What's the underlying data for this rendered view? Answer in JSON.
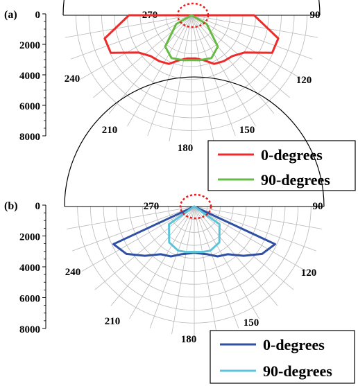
{
  "chart_data": [
    {
      "panel_label": "(a)",
      "type": "polar",
      "radial_axis": {
        "ticks": [
          0,
          2000,
          4000,
          6000,
          8000
        ],
        "range": [
          0,
          8000
        ]
      },
      "angle_ticks": [
        "270",
        "240",
        "210",
        "180",
        "150",
        "120",
        "90"
      ],
      "legend": {
        "placement": "bottom-right",
        "entries": [
          "0-degrees",
          "90-degrees"
        ]
      },
      "series": [
        {
          "name": "0-degrees",
          "color": "#ee2a2a",
          "points": [
            {
              "angle": 270,
              "value": 3900
            },
            {
              "angle": 255,
              "value": 5600
            },
            {
              "angle": 245,
              "value": 5550
            },
            {
              "angle": 235,
              "value": 4050
            },
            {
              "angle": 225,
              "value": 3600
            },
            {
              "angle": 215,
              "value": 3500
            },
            {
              "angle": 205,
              "value": 3350
            },
            {
              "angle": 195,
              "value": 2900
            },
            {
              "angle": 185,
              "value": 2700
            },
            {
              "angle": 180,
              "value": 2700
            },
            {
              "angle": 175,
              "value": 2700
            },
            {
              "angle": 165,
              "value": 2900
            },
            {
              "angle": 155,
              "value": 3350
            },
            {
              "angle": 145,
              "value": 3500
            },
            {
              "angle": 135,
              "value": 3600
            },
            {
              "angle": 125,
              "value": 4050
            },
            {
              "angle": 115,
              "value": 5550
            },
            {
              "angle": 105,
              "value": 5600
            },
            {
              "angle": 90,
              "value": 3900
            }
          ]
        },
        {
          "name": "90-degrees",
          "color": "#66bb44",
          "points": [
            {
              "angle": 270,
              "value": 0
            },
            {
              "angle": 240,
              "value": 1100
            },
            {
              "angle": 220,
              "value": 2550
            },
            {
              "angle": 205,
              "value": 2950
            },
            {
              "angle": 190,
              "value": 2850
            },
            {
              "angle": 180,
              "value": 2800
            },
            {
              "angle": 170,
              "value": 2850
            },
            {
              "angle": 155,
              "value": 2950
            },
            {
              "angle": 140,
              "value": 2550
            },
            {
              "angle": 120,
              "value": 1100
            },
            {
              "angle": 90,
              "value": 0
            }
          ]
        }
      ]
    },
    {
      "panel_label": "(b)",
      "type": "polar",
      "radial_axis": {
        "ticks": [
          0,
          2000,
          4000,
          6000,
          8000
        ],
        "range": [
          0,
          8000
        ]
      },
      "angle_ticks": [
        "270",
        "240",
        "210",
        "180",
        "150",
        "120",
        "90"
      ],
      "legend": {
        "placement": "bottom-right",
        "entries": [
          "0-degrees",
          "90-degrees"
        ]
      },
      "series": [
        {
          "name": "0-degrees",
          "color": "#2f4fa5",
          "points": [
            {
              "angle": 270,
              "value": 0
            },
            {
              "angle": 245,
              "value": 5500
            },
            {
              "angle": 235,
              "value": 5100
            },
            {
              "angle": 225,
              "value": 4300
            },
            {
              "angle": 215,
              "value": 3600
            },
            {
              "angle": 205,
              "value": 3400
            },
            {
              "angle": 195,
              "value": 3050
            },
            {
              "angle": 185,
              "value": 2900
            },
            {
              "angle": 180,
              "value": 2850
            },
            {
              "angle": 175,
              "value": 2900
            },
            {
              "angle": 165,
              "value": 3050
            },
            {
              "angle": 155,
              "value": 3400
            },
            {
              "angle": 145,
              "value": 3600
            },
            {
              "angle": 135,
              "value": 4300
            },
            {
              "angle": 125,
              "value": 5100
            },
            {
              "angle": 115,
              "value": 5500
            },
            {
              "angle": 90,
              "value": 0
            }
          ]
        },
        {
          "name": "90-degrees",
          "color": "#5cc4d8",
          "points": [
            {
              "angle": 270,
              "value": 0
            },
            {
              "angle": 235,
              "value": 1900
            },
            {
              "angle": 215,
              "value": 2700
            },
            {
              "angle": 200,
              "value": 2900
            },
            {
              "angle": 190,
              "value": 2850
            },
            {
              "angle": 180,
              "value": 2800
            },
            {
              "angle": 170,
              "value": 2850
            },
            {
              "angle": 160,
              "value": 2900
            },
            {
              "angle": 145,
              "value": 2700
            },
            {
              "angle": 125,
              "value": 1900
            },
            {
              "angle": 90,
              "value": 0
            }
          ]
        }
      ]
    }
  ]
}
